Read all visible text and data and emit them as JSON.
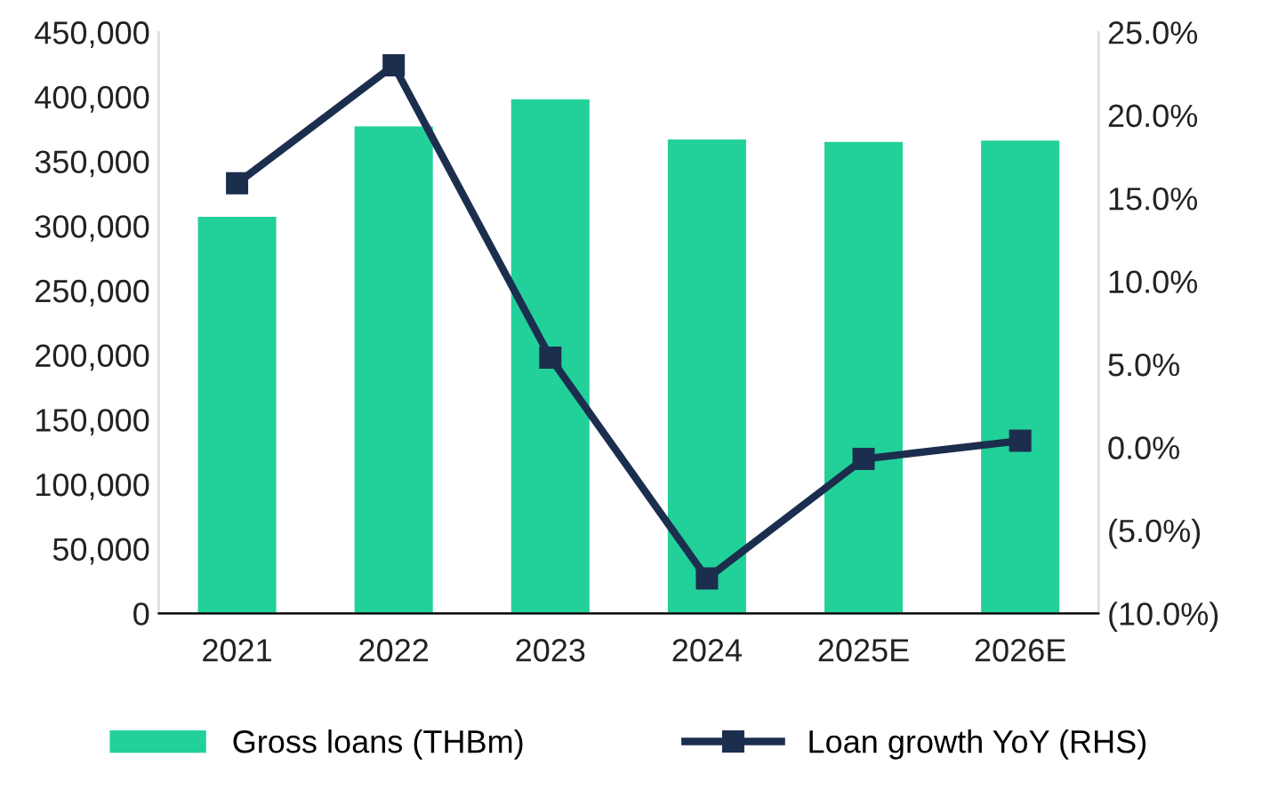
{
  "chart_data": {
    "type": "bar",
    "categories": [
      "2021",
      "2022",
      "2023",
      "2024",
      "2025E",
      "2026E"
    ],
    "series": [
      {
        "name": "Gross loans (THBm)",
        "color": "#22d09a",
        "values": [
          307000,
          377000,
          398000,
          367000,
          365000,
          366000
        ]
      },
      {
        "name": "Loan growth YoY (RHS)",
        "type": "line",
        "axis": "y2",
        "color": "#1c2e4e",
        "marker": "square",
        "line_style": "solid",
        "values": [
          15.9,
          23.0,
          5.4,
          -7.9,
          -0.7,
          0.4
        ]
      }
    ],
    "ylim": [
      0,
      450000
    ],
    "yticks": [
      {
        "value": 0,
        "label": "0"
      },
      {
        "value": 50000,
        "label": "50,000"
      },
      {
        "value": 100000,
        "label": "100,000"
      },
      {
        "value": 150000,
        "label": "150,000"
      },
      {
        "value": 200000,
        "label": "200,000"
      },
      {
        "value": 250000,
        "label": "250,000"
      },
      {
        "value": 300000,
        "label": "300,000"
      },
      {
        "value": 350000,
        "label": "350,000"
      },
      {
        "value": 400000,
        "label": "400,000"
      },
      {
        "value": 450000,
        "label": "450,000"
      }
    ],
    "y2lim": [
      -10,
      25
    ],
    "y2ticks": [
      {
        "value": -10,
        "label": "(10.0%)"
      },
      {
        "value": -5,
        "label": "(5.0%)"
      },
      {
        "value": 0,
        "label": "0.0%"
      },
      {
        "value": 5,
        "label": "5.0%"
      },
      {
        "value": 10,
        "label": "10.0%"
      },
      {
        "value": 15,
        "label": "15.0%"
      },
      {
        "value": 20,
        "label": "20.0%"
      },
      {
        "value": 25,
        "label": "25.0%"
      }
    ],
    "grid": false,
    "legend": "bottom"
  }
}
